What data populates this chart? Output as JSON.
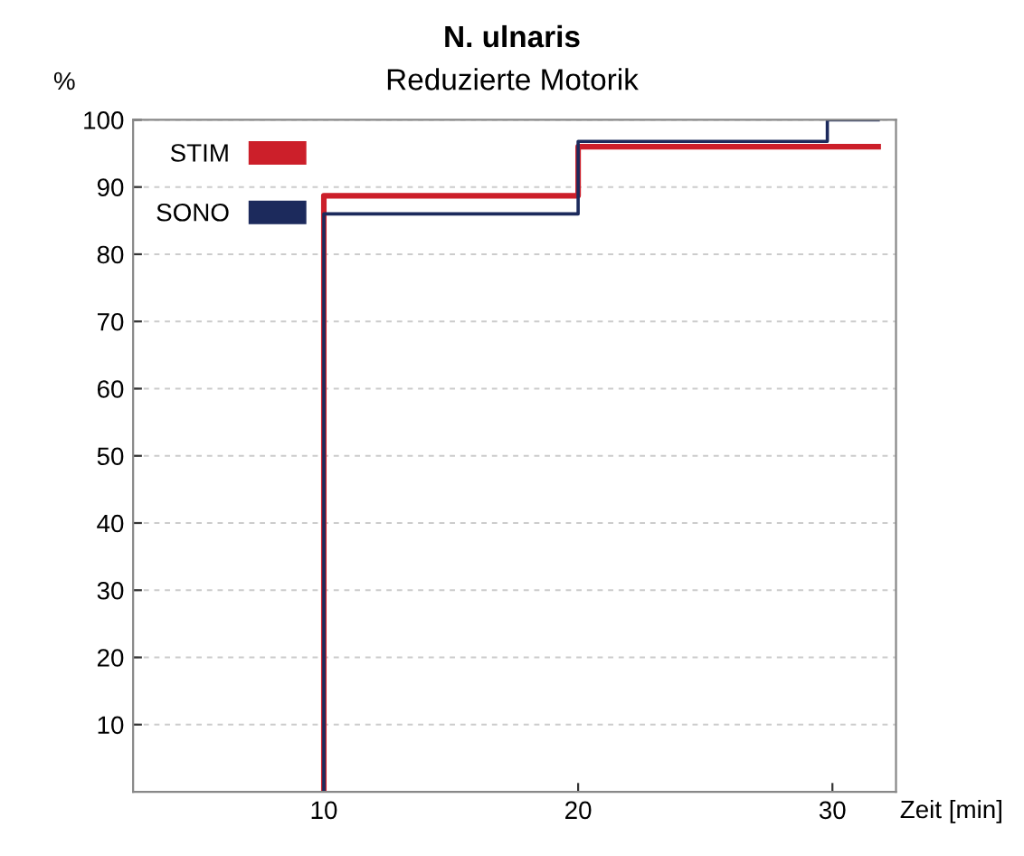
{
  "chart_data": {
    "type": "step",
    "title": "N. ulnaris",
    "subtitle": "Reduzierte Motorik",
    "ylabel": "%",
    "xlabel": "Zeit [min]",
    "xlim": [
      2.5,
      32.5
    ],
    "xticks": [
      10,
      20,
      30
    ],
    "ylim": [
      0,
      100
    ],
    "yticks": [
      10,
      20,
      30,
      40,
      50,
      60,
      70,
      80,
      90,
      100
    ],
    "grid": "y",
    "legend": "top left",
    "series": [
      {
        "name": "STIM",
        "color": "#cc1f2a",
        "x": [
          10,
          10,
          20,
          31.8
        ],
        "values": [
          0,
          88.7,
          96,
          96
        ]
      },
      {
        "name": "SONO",
        "color": "#1c2a5c",
        "x": [
          10,
          10,
          20,
          29.8,
          31.8
        ],
        "values": [
          0,
          86,
          96.8,
          100,
          100
        ]
      }
    ]
  }
}
